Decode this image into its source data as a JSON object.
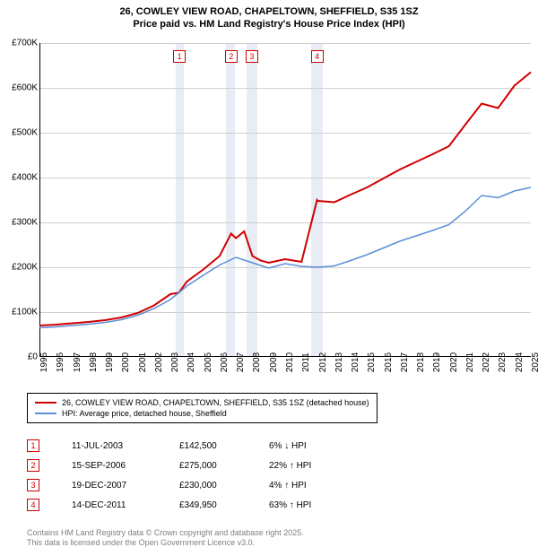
{
  "title": {
    "line1": "26, COWLEY VIEW ROAD, CHAPELTOWN, SHEFFIELD, S35 1SZ",
    "line2": "Price paid vs. HM Land Registry's House Price Index (HPI)"
  },
  "chart": {
    "type": "line",
    "background_color": "#ffffff",
    "grid_color": "#d0d0d0",
    "band_color": "#e8ecf4",
    "ylim": [
      0,
      700
    ],
    "ytick_step": 100,
    "ytick_prefix": "£",
    "ytick_suffix": "K",
    "x_years": [
      1995,
      1996,
      1997,
      1998,
      1999,
      2000,
      2001,
      2002,
      2003,
      2004,
      2005,
      2006,
      2007,
      2008,
      2009,
      2010,
      2011,
      2012,
      2013,
      2014,
      2015,
      2016,
      2017,
      2018,
      2019,
      2020,
      2021,
      2022,
      2023,
      2024,
      2025
    ],
    "bands": [
      {
        "start": 2003.3,
        "end": 2003.8
      },
      {
        "start": 2006.4,
        "end": 2006.95
      },
      {
        "start": 2007.65,
        "end": 2008.3
      },
      {
        "start": 2011.6,
        "end": 2012.3
      }
    ],
    "markers": [
      {
        "n": "1",
        "x": 2003.55
      },
      {
        "n": "2",
        "x": 2006.7
      },
      {
        "n": "3",
        "x": 2007.97
      },
      {
        "n": "4",
        "x": 2011.95
      }
    ],
    "series": [
      {
        "name": "property",
        "color": "#d00000",
        "width": 2,
        "points": [
          [
            1995,
            70
          ],
          [
            1996,
            72
          ],
          [
            1997,
            75
          ],
          [
            1998,
            78
          ],
          [
            1999,
            82
          ],
          [
            2000,
            88
          ],
          [
            2001,
            98
          ],
          [
            2002,
            115
          ],
          [
            2003,
            140
          ],
          [
            2003.5,
            143
          ],
          [
            2003.51,
            143
          ],
          [
            2004,
            168
          ],
          [
            2005,
            195
          ],
          [
            2006,
            225
          ],
          [
            2006.7,
            275
          ],
          [
            2007,
            265
          ],
          [
            2007.5,
            280
          ],
          [
            2007.96,
            230
          ],
          [
            2008,
            225
          ],
          [
            2008.5,
            215
          ],
          [
            2009,
            210
          ],
          [
            2010,
            218
          ],
          [
            2011,
            212
          ],
          [
            2011.95,
            350
          ],
          [
            2012,
            348
          ],
          [
            2013,
            345
          ],
          [
            2014,
            362
          ],
          [
            2015,
            378
          ],
          [
            2016,
            398
          ],
          [
            2017,
            418
          ],
          [
            2018,
            435
          ],
          [
            2019,
            452
          ],
          [
            2020,
            470
          ],
          [
            2021,
            518
          ],
          [
            2022,
            565
          ],
          [
            2023,
            555
          ],
          [
            2024,
            605
          ],
          [
            2025,
            635
          ]
        ]
      },
      {
        "name": "hpi",
        "color": "#5b8fd6",
        "width": 1.5,
        "points": [
          [
            1995,
            65
          ],
          [
            1996,
            67
          ],
          [
            1997,
            70
          ],
          [
            1998,
            73
          ],
          [
            1999,
            77
          ],
          [
            2000,
            83
          ],
          [
            2001,
            93
          ],
          [
            2002,
            108
          ],
          [
            2003,
            128
          ],
          [
            2004,
            158
          ],
          [
            2005,
            182
          ],
          [
            2006,
            205
          ],
          [
            2007,
            222
          ],
          [
            2008,
            210
          ],
          [
            2009,
            198
          ],
          [
            2010,
            208
          ],
          [
            2011,
            202
          ],
          [
            2012,
            200
          ],
          [
            2013,
            203
          ],
          [
            2014,
            215
          ],
          [
            2015,
            228
          ],
          [
            2016,
            243
          ],
          [
            2017,
            258
          ],
          [
            2018,
            270
          ],
          [
            2019,
            282
          ],
          [
            2020,
            295
          ],
          [
            2021,
            325
          ],
          [
            2022,
            360
          ],
          [
            2023,
            355
          ],
          [
            2024,
            370
          ],
          [
            2025,
            378
          ]
        ]
      }
    ]
  },
  "legend": {
    "items": [
      {
        "color": "#d00000",
        "label": "26, COWLEY VIEW ROAD, CHAPELTOWN, SHEFFIELD, S35 1SZ (detached house)"
      },
      {
        "color": "#5b8fd6",
        "label": "HPI: Average price, detached house, Sheffield"
      }
    ]
  },
  "transactions": [
    {
      "n": "1",
      "date": "11-JUL-2003",
      "price": "£142,500",
      "pct": "6% ↓ HPI"
    },
    {
      "n": "2",
      "date": "15-SEP-2006",
      "price": "£275,000",
      "pct": "22% ↑ HPI"
    },
    {
      "n": "3",
      "date": "19-DEC-2007",
      "price": "£230,000",
      "pct": "4% ↑ HPI"
    },
    {
      "n": "4",
      "date": "14-DEC-2011",
      "price": "£349,950",
      "pct": "63% ↑ HPI"
    }
  ],
  "footer": {
    "line1": "Contains HM Land Registry data © Crown copyright and database right 2025.",
    "line2": "This data is licensed under the Open Government Licence v3.0."
  }
}
